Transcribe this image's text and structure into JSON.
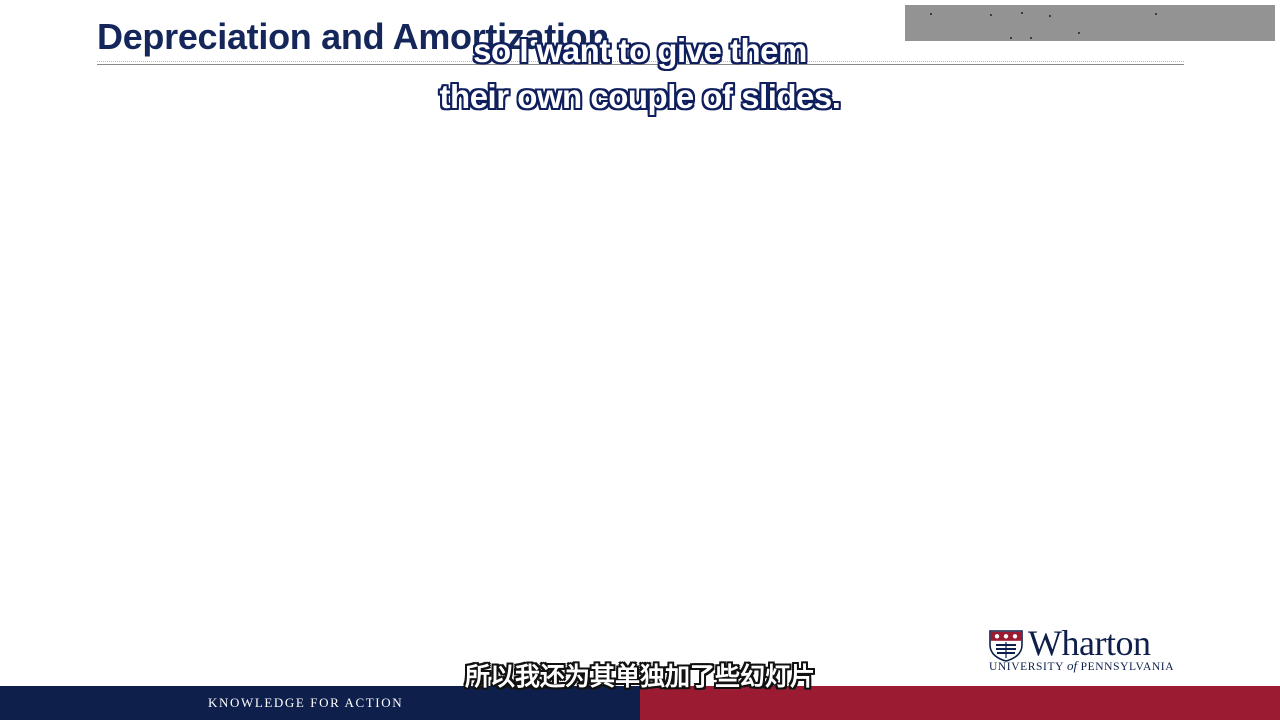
{
  "slide": {
    "title": "Depreciation and Amortization"
  },
  "subtitles": {
    "english_line_1": "so I want to give them",
    "english_line_2": "their own couple of slides.",
    "chinese": "所以我还为其单独加了些幻灯片"
  },
  "footer": {
    "tagline": "KNOWLEDGE FOR ACTION",
    "left_color": "#0f1f4b",
    "right_color": "#9b1c32"
  },
  "logo": {
    "wordmark": "Wharton",
    "university_prefix": "UNIVERSITY ",
    "university_of": "of",
    "university_suffix": " PENNSYLVANIA",
    "icon": "penn-shield-icon"
  },
  "colors": {
    "title": "#14265a",
    "overlay_box": "#939393"
  }
}
